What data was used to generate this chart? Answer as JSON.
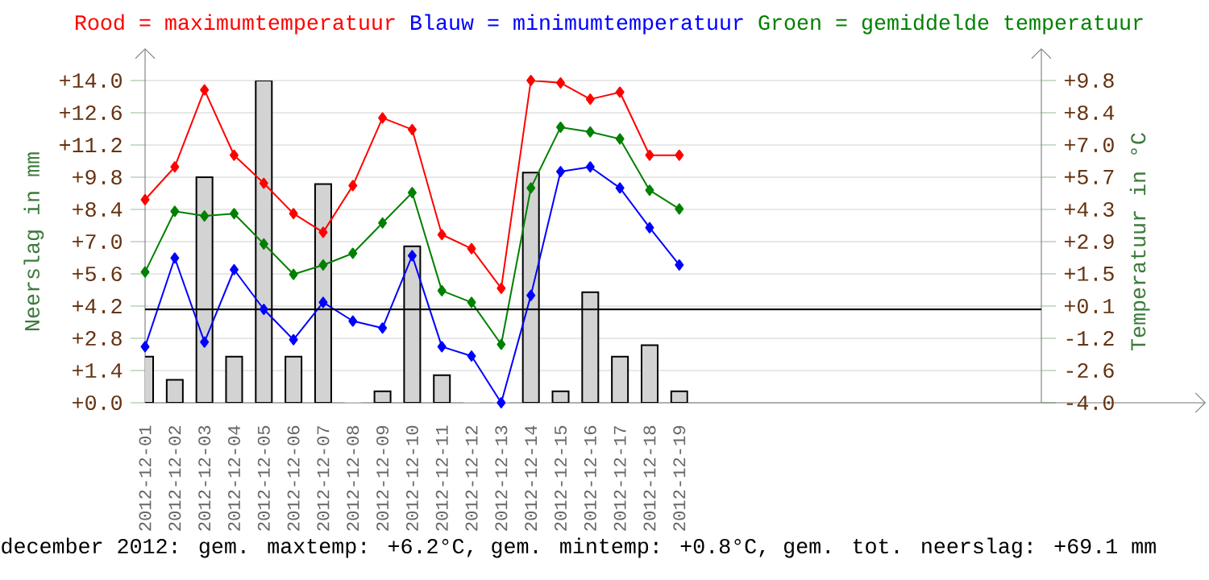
{
  "chart_data": {
    "type": "line",
    "categories": [
      "2012-12-01",
      "2012-12-02",
      "2012-12-03",
      "2012-12-04",
      "2012-12-05",
      "2012-12-06",
      "2012-12-07",
      "2012-12-08",
      "2012-12-09",
      "2012-12-10",
      "2012-12-11",
      "2012-12-12",
      "2012-12-13",
      "2012-12-14",
      "2012-12-15",
      "2012-12-16",
      "2012-12-17",
      "2012-12-18",
      "2012-12-19",
      null,
      null,
      null,
      null,
      null,
      null,
      null,
      null,
      null,
      null,
      null,
      null
    ],
    "series": [
      {
        "type": "bar",
        "axis": "y",
        "color": "#d3d3d3",
        "values": [
          2.0,
          1.0,
          9.8,
          2.0,
          14.0,
          2.0,
          9.5,
          0,
          0.5,
          6.8,
          1.2,
          0,
          0,
          10.0,
          0.5,
          4.8,
          2.0,
          2.5,
          0.5,
          null,
          null,
          null,
          null,
          null,
          null,
          null,
          null,
          null,
          null,
          null,
          null
        ]
      },
      {
        "axis": "y2",
        "name": "Rood = maximumtemperatuur",
        "color": "#ff0000",
        "values": [
          4.7,
          6.1,
          9.4,
          6.6,
          5.4,
          4.1,
          3.3,
          5.3,
          8.2,
          7.7,
          3.2,
          2.6,
          0.9,
          9.8,
          9.7,
          9.0,
          9.3,
          6.6,
          6.6,
          null,
          null,
          null,
          null,
          null,
          null,
          null,
          null,
          null,
          null,
          null,
          null
        ]
      },
      {
        "axis": "y2",
        "name": "Blauw = minimumtemperatuur",
        "color": "#0000ff",
        "values": [
          -1.6,
          2.2,
          -1.4,
          1.7,
          0.0,
          -1.3,
          0.3,
          -0.5,
          -0.8,
          2.3,
          -1.6,
          -2.0,
          -4.0,
          0.6,
          5.9,
          6.1,
          5.2,
          3.5,
          1.9,
          null,
          null,
          null,
          null,
          null,
          null,
          null,
          null,
          null,
          null,
          null,
          null
        ]
      },
      {
        "axis": "y2",
        "name": "Groen = gemiddelde temperatuur",
        "color": "#008000",
        "values": [
          1.6,
          4.2,
          4.0,
          4.1,
          2.8,
          1.5,
          1.9,
          2.4,
          3.7,
          5.0,
          0.8,
          0.3,
          -1.5,
          5.2,
          7.8,
          7.6,
          7.3,
          5.1,
          4.3,
          null,
          null,
          null,
          null,
          null,
          null,
          null,
          null,
          null,
          null,
          null,
          null
        ]
      }
    ],
    "ylabel": "Neerslag in mm",
    "y2label": "Temperatuur in °C",
    "ylim": [
      0,
      14
    ],
    "yticks": [
      {
        "value": 0,
        "label": "+0.0"
      },
      {
        "value": 1.4,
        "label": "+1.4"
      },
      {
        "value": 2.8,
        "label": "+2.8"
      },
      {
        "value": 4.2,
        "label": "+4.2"
      },
      {
        "value": 5.6,
        "label": "+5.6"
      },
      {
        "value": 7,
        "label": "+7.0"
      },
      {
        "value": 8.4,
        "label": "+8.4"
      },
      {
        "value": 9.8,
        "label": "+9.8"
      },
      {
        "value": 11.2,
        "label": "+11.2"
      },
      {
        "value": 12.6,
        "label": "+12.6"
      },
      {
        "value": 14,
        "label": "+14.0"
      }
    ],
    "y2lim": [
      -4,
      9.8
    ],
    "y2ticks": [
      {
        "value": -4,
        "label": "-4.0"
      },
      {
        "value": -2.62,
        "label": "-2.6"
      },
      {
        "value": -1.24,
        "label": "-1.2"
      },
      {
        "value": 0.14,
        "label": "+0.1"
      },
      {
        "value": 1.52,
        "label": "+1.5"
      },
      {
        "value": 2.9,
        "label": "+2.9"
      },
      {
        "value": 4.28,
        "label": "+4.3"
      },
      {
        "value": 5.66,
        "label": "+5.7"
      },
      {
        "value": 7.04,
        "label": "+7.0"
      },
      {
        "value": 8.42,
        "label": "+8.4"
      },
      {
        "value": 9.8,
        "label": "+9.8"
      }
    ],
    "ref_lines": [
      {
        "axis": "y2",
        "value": 0,
        "color": "#000000"
      }
    ],
    "grid": "y",
    "legend": "top",
    "marker": "diamond",
    "annotations": [
      "december 2012: gem. maxtemp: +6.2°C, gem. mintemp: +0.8°C, gem. tot. neerslag: +69.1 mm"
    ]
  }
}
